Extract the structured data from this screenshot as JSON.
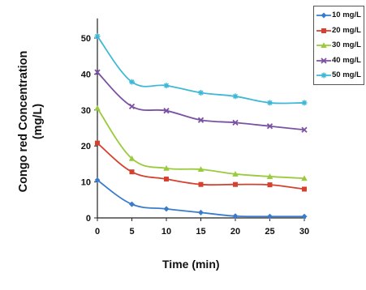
{
  "chart_data": {
    "type": "line",
    "title": "",
    "xlabel": "Time (min)",
    "ylabel": "Congo red Concentration (mg/L)",
    "ylabel_lines": [
      "Congo red Concentration",
      "(mg/L)"
    ],
    "x": [
      0,
      5,
      10,
      15,
      20,
      25,
      30
    ],
    "xlim": [
      0,
      30
    ],
    "ylim": [
      0,
      55
    ],
    "xticks": [
      0,
      5,
      10,
      15,
      20,
      25,
      30
    ],
    "yticks": [
      0,
      10,
      20,
      30,
      40,
      50
    ],
    "grid": false,
    "legend_position": "top-right",
    "series": [
      {
        "name": "10 mg/L",
        "color": "#3a7ccc",
        "marker": "diamond",
        "values": [
          10.5,
          3.8,
          2.5,
          1.5,
          0.5,
          0.4,
          0.4
        ]
      },
      {
        "name": "20 mg/L",
        "color": "#d6402e",
        "marker": "square",
        "values": [
          20.8,
          12.8,
          10.8,
          9.3,
          9.3,
          9.2,
          8.0
        ]
      },
      {
        "name": "30 mg/L",
        "color": "#9acb3c",
        "marker": "triangle",
        "values": [
          30.5,
          16.5,
          13.8,
          13.5,
          12.2,
          11.5,
          11.0
        ]
      },
      {
        "name": "40 mg/L",
        "color": "#7b51a3",
        "marker": "x",
        "values": [
          40.5,
          31.0,
          29.8,
          27.2,
          26.5,
          25.5,
          24.5
        ]
      },
      {
        "name": "50 mg/L",
        "color": "#3fb8d6",
        "marker": "star",
        "values": [
          50.5,
          37.8,
          36.8,
          34.8,
          33.8,
          32.0,
          32.0
        ]
      }
    ]
  }
}
